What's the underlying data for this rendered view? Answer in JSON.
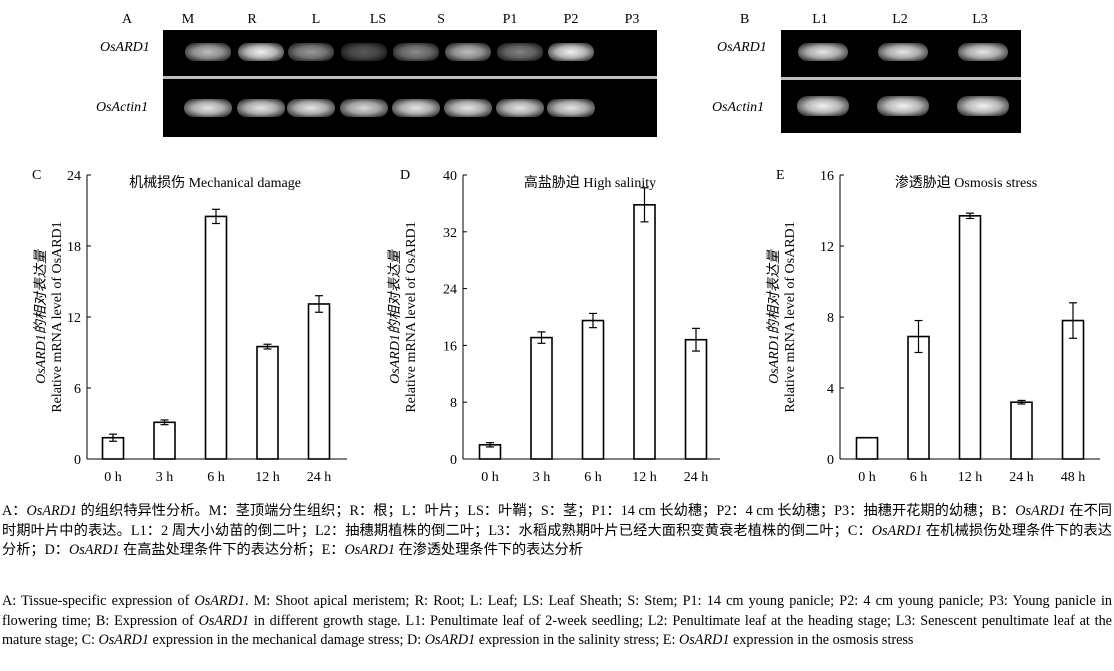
{
  "gel_a": {
    "panel": "A",
    "lanes": [
      "M",
      "R",
      "L",
      "LS",
      "S",
      "P1",
      "P2",
      "P3"
    ],
    "rows": [
      "OsARD1",
      "OsActin1"
    ]
  },
  "gel_b": {
    "panel": "B",
    "lanes": [
      "L1",
      "L2",
      "L3"
    ],
    "rows": [
      "OsARD1",
      "OsActin1"
    ]
  },
  "chart_data": [
    {
      "type": "bar",
      "panel": "C",
      "title": "机械损伤 Mechanical damage",
      "ylabel_line1": "OsARD1的相对表达量",
      "ylabel_line2": "Relative mRNA level of OsARD1",
      "categories": [
        "0 h",
        "3 h",
        "6 h",
        "12 h",
        "24 h"
      ],
      "values": [
        1.8,
        3.1,
        20.5,
        9.5,
        13.1
      ],
      "errors": [
        0.3,
        0.2,
        0.6,
        0.2,
        0.7
      ],
      "ylim": [
        0,
        24
      ],
      "yticks": [
        0,
        6,
        12,
        18,
        24
      ]
    },
    {
      "type": "bar",
      "panel": "D",
      "title": "高盐胁迫 High salinity",
      "ylabel_line1": "OsARD1的相对表达量",
      "ylabel_line2": "Relative mRNA level of OsARD1",
      "categories": [
        "0 h",
        "3 h",
        "6 h",
        "12 h",
        "24 h"
      ],
      "values": [
        2.0,
        17.1,
        19.5,
        35.8,
        16.8
      ],
      "errors": [
        0.3,
        0.8,
        1.0,
        2.4,
        1.6
      ],
      "ylim": [
        0,
        40
      ],
      "yticks": [
        0,
        8,
        16,
        24,
        32,
        40
      ]
    },
    {
      "type": "bar",
      "panel": "E",
      "title": "渗透胁迫 Osmosis stress",
      "ylabel_line1": "OsARD1的相对表达量",
      "ylabel_line2": "Relative mRNA level of OsARD1",
      "categories": [
        "0 h",
        "6 h",
        "12 h",
        "24 h",
        "48 h"
      ],
      "values": [
        1.2,
        6.9,
        13.7,
        3.2,
        7.8
      ],
      "errors": [
        0.0,
        0.9,
        0.15,
        0.1,
        1.0
      ],
      "ylim": [
        0,
        16
      ],
      "yticks": [
        0,
        4,
        8,
        12,
        16
      ]
    }
  ],
  "caption_cn": "A：OsARD1 的组织特异性分析。M：茎顶端分生组织；R：根；L：叶片；LS：叶鞘；S：茎；P1：14 cm 长幼穗；P2：4 cm 长幼穗；P3：抽穗开花期的幼穗；B：OsARD1 在不同时期叶片中的表达。L1：2 周大小幼苗的倒二叶；L2：抽穗期植株的倒二叶；L3：水稻成熟期叶片已经大面积变黄衰老植株的倒二叶；C：OsARD1 在机械损伤处理条件下的表达分析；D：OsARD1 在高盐处理条件下的表达分析；E：OsARD1 在渗透处理条件下的表达分析",
  "caption_en": "A: Tissue-specific expression of OsARD1. M: Shoot apical meristem; R: Root; L: Leaf; LS: Leaf Sheath; S: Stem; P1: 14 cm young panicle; P2: 4 cm young panicle; P3: Young panicle in flowering time; B: Expression of OsARD1 in different growth stage. L1: Penultimate leaf of 2-week seedling; L2: Penultimate leaf at the heading stage; L3: Senescent penultimate leaf at the mature stage; C: OsARD1 expression in the mechanical damage stress; D: OsARD1 expression in the salinity stress; E: OsARD1 expression in the osmosis stress"
}
